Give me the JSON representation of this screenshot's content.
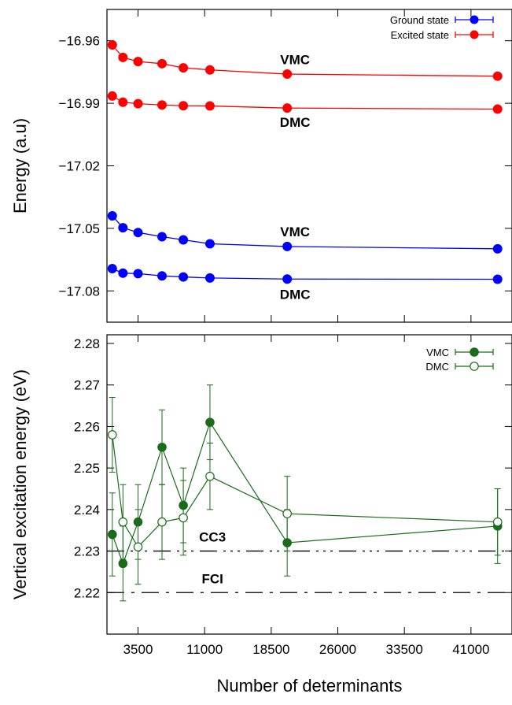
{
  "chart_data": [
    {
      "type": "line",
      "ylabel": "Energy (a.u)",
      "ylim": [
        -17.095,
        -16.945
      ],
      "xlim": [
        0,
        45000
      ],
      "yticks": [
        -16.96,
        -16.99,
        -17.02,
        -17.05,
        -17.08
      ],
      "ytick_labels": [
        "−16.96",
        "−16.99",
        "−17.02",
        "−17.05",
        "−17.08"
      ],
      "x": [
        600,
        1800,
        3500,
        6200,
        8600,
        11600,
        20300,
        44000
      ],
      "series": [
        {
          "name": "Excited state",
          "method": "VMC",
          "color": "#ff0000",
          "values": [
            -16.962,
            -16.968,
            -16.97,
            -16.971,
            -16.973,
            -16.974,
            -16.976,
            -16.977
          ]
        },
        {
          "name": "Excited state",
          "method": "DMC",
          "color": "#ff0000",
          "values": [
            -16.9865,
            -16.9895,
            -16.9902,
            -16.9908,
            -16.9912,
            -16.9913,
            -16.9923,
            -16.9928
          ]
        },
        {
          "name": "Ground state",
          "method": "VMC",
          "color": "#0000ff",
          "values": [
            -17.044,
            -17.0497,
            -17.052,
            -17.054,
            -17.0555,
            -17.0574,
            -17.0587,
            -17.0598
          ]
        },
        {
          "name": "Ground state",
          "method": "DMC",
          "color": "#0000ff",
          "values": [
            -17.0693,
            -17.0715,
            -17.0717,
            -17.0728,
            -17.0733,
            -17.0738,
            -17.0743,
            -17.0744
          ]
        }
      ],
      "annotations": [
        {
          "text": "VMC",
          "x": 20300,
          "y": -16.969
        },
        {
          "text": "DMC",
          "x": 20300,
          "y": -16.999
        },
        {
          "text": "VMC",
          "x": 20300,
          "y": -17.0515
        },
        {
          "text": "DMC",
          "x": 20300,
          "y": -17.0815
        }
      ],
      "legend": {
        "placement": "top-right",
        "entries": [
          {
            "label": "Ground state",
            "color": "#0000ff"
          },
          {
            "label": "Excited state",
            "color": "#ff0000"
          }
        ]
      }
    },
    {
      "type": "line",
      "xlabel": "Number of determinants",
      "ylabel": "Vertical excitation energy (eV)",
      "ylim": [
        2.21,
        2.28
      ],
      "xlim": [
        0,
        45000
      ],
      "xticks": [
        3500,
        11000,
        18500,
        26000,
        33500,
        41000
      ],
      "xtick_labels": [
        "3500",
        "11000",
        "18500",
        "26000",
        "33500",
        "41000"
      ],
      "yticks": [
        2.22,
        2.23,
        2.24,
        2.25,
        2.26,
        2.27,
        2.28
      ],
      "ytick_labels": [
        "2.22",
        "2.23",
        "2.24",
        "2.25",
        "2.26",
        "2.27",
        "2.28"
      ],
      "x": [
        600,
        1800,
        3500,
        6200,
        8600,
        11600,
        20300,
        44000
      ],
      "color": "#1a6b1a",
      "series": [
        {
          "name": "VMC",
          "filled": true,
          "values": [
            2.234,
            2.227,
            2.237,
            2.255,
            2.241,
            2.261,
            2.232,
            2.236
          ],
          "errors": [
            0.01,
            0.009,
            0.009,
            0.009,
            0.009,
            0.009,
            0.008,
            0.009
          ]
        },
        {
          "name": "DMC",
          "filled": false,
          "values": [
            2.258,
            2.237,
            2.231,
            2.237,
            2.238,
            2.248,
            2.239,
            2.237
          ],
          "errors": [
            0.009,
            0.009,
            0.009,
            0.009,
            0.009,
            0.008,
            0.009,
            0.008
          ]
        }
      ],
      "reference_lines": [
        {
          "label": "CC3",
          "y": 2.23
        },
        {
          "label": "FCI",
          "y": 2.22
        }
      ],
      "legend": {
        "placement": "top-right",
        "entries": [
          "VMC",
          "DMC"
        ]
      }
    }
  ]
}
